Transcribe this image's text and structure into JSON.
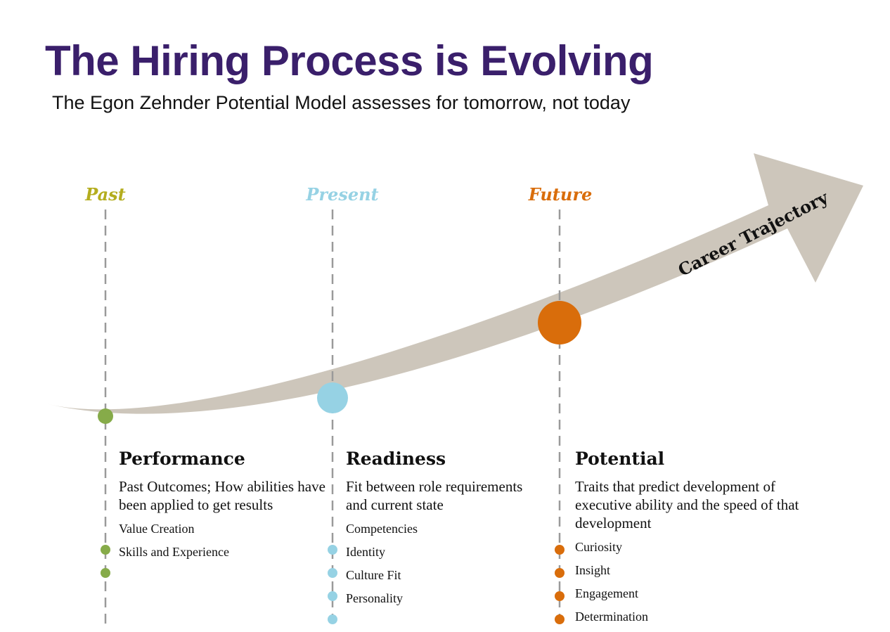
{
  "header": {
    "title": "The Hiring Process is Evolving",
    "subtitle": "The Egon Zehnder Potential Model assesses for tomorrow, not today"
  },
  "arrow_label": "Career Trajectory",
  "colors": {
    "title": "#3a1f6b",
    "arrow": "#cdc6bb",
    "past": "#b4ad1e",
    "present": "#96d2e4",
    "future": "#d96d0b",
    "past_dot": "#86ab49",
    "dash": "#9a9a9a"
  },
  "phases": [
    {
      "label": "Past",
      "heading": "Performance",
      "description": "Past Outcomes; How abilities have been applied to get results",
      "items": [
        "Value Creation",
        "Skills and Experience"
      ]
    },
    {
      "label": "Present",
      "heading": "Readiness",
      "description": "Fit between role requirements and current state",
      "items": [
        "Competencies",
        "Identity",
        "Culture Fit",
        "Personality"
      ]
    },
    {
      "label": "Future",
      "heading": "Potential",
      "description": "Traits that predict development of executive ability and the speed of that development",
      "items": [
        "Curiosity",
        "Insight",
        "Engagement",
        "Determination"
      ]
    }
  ]
}
